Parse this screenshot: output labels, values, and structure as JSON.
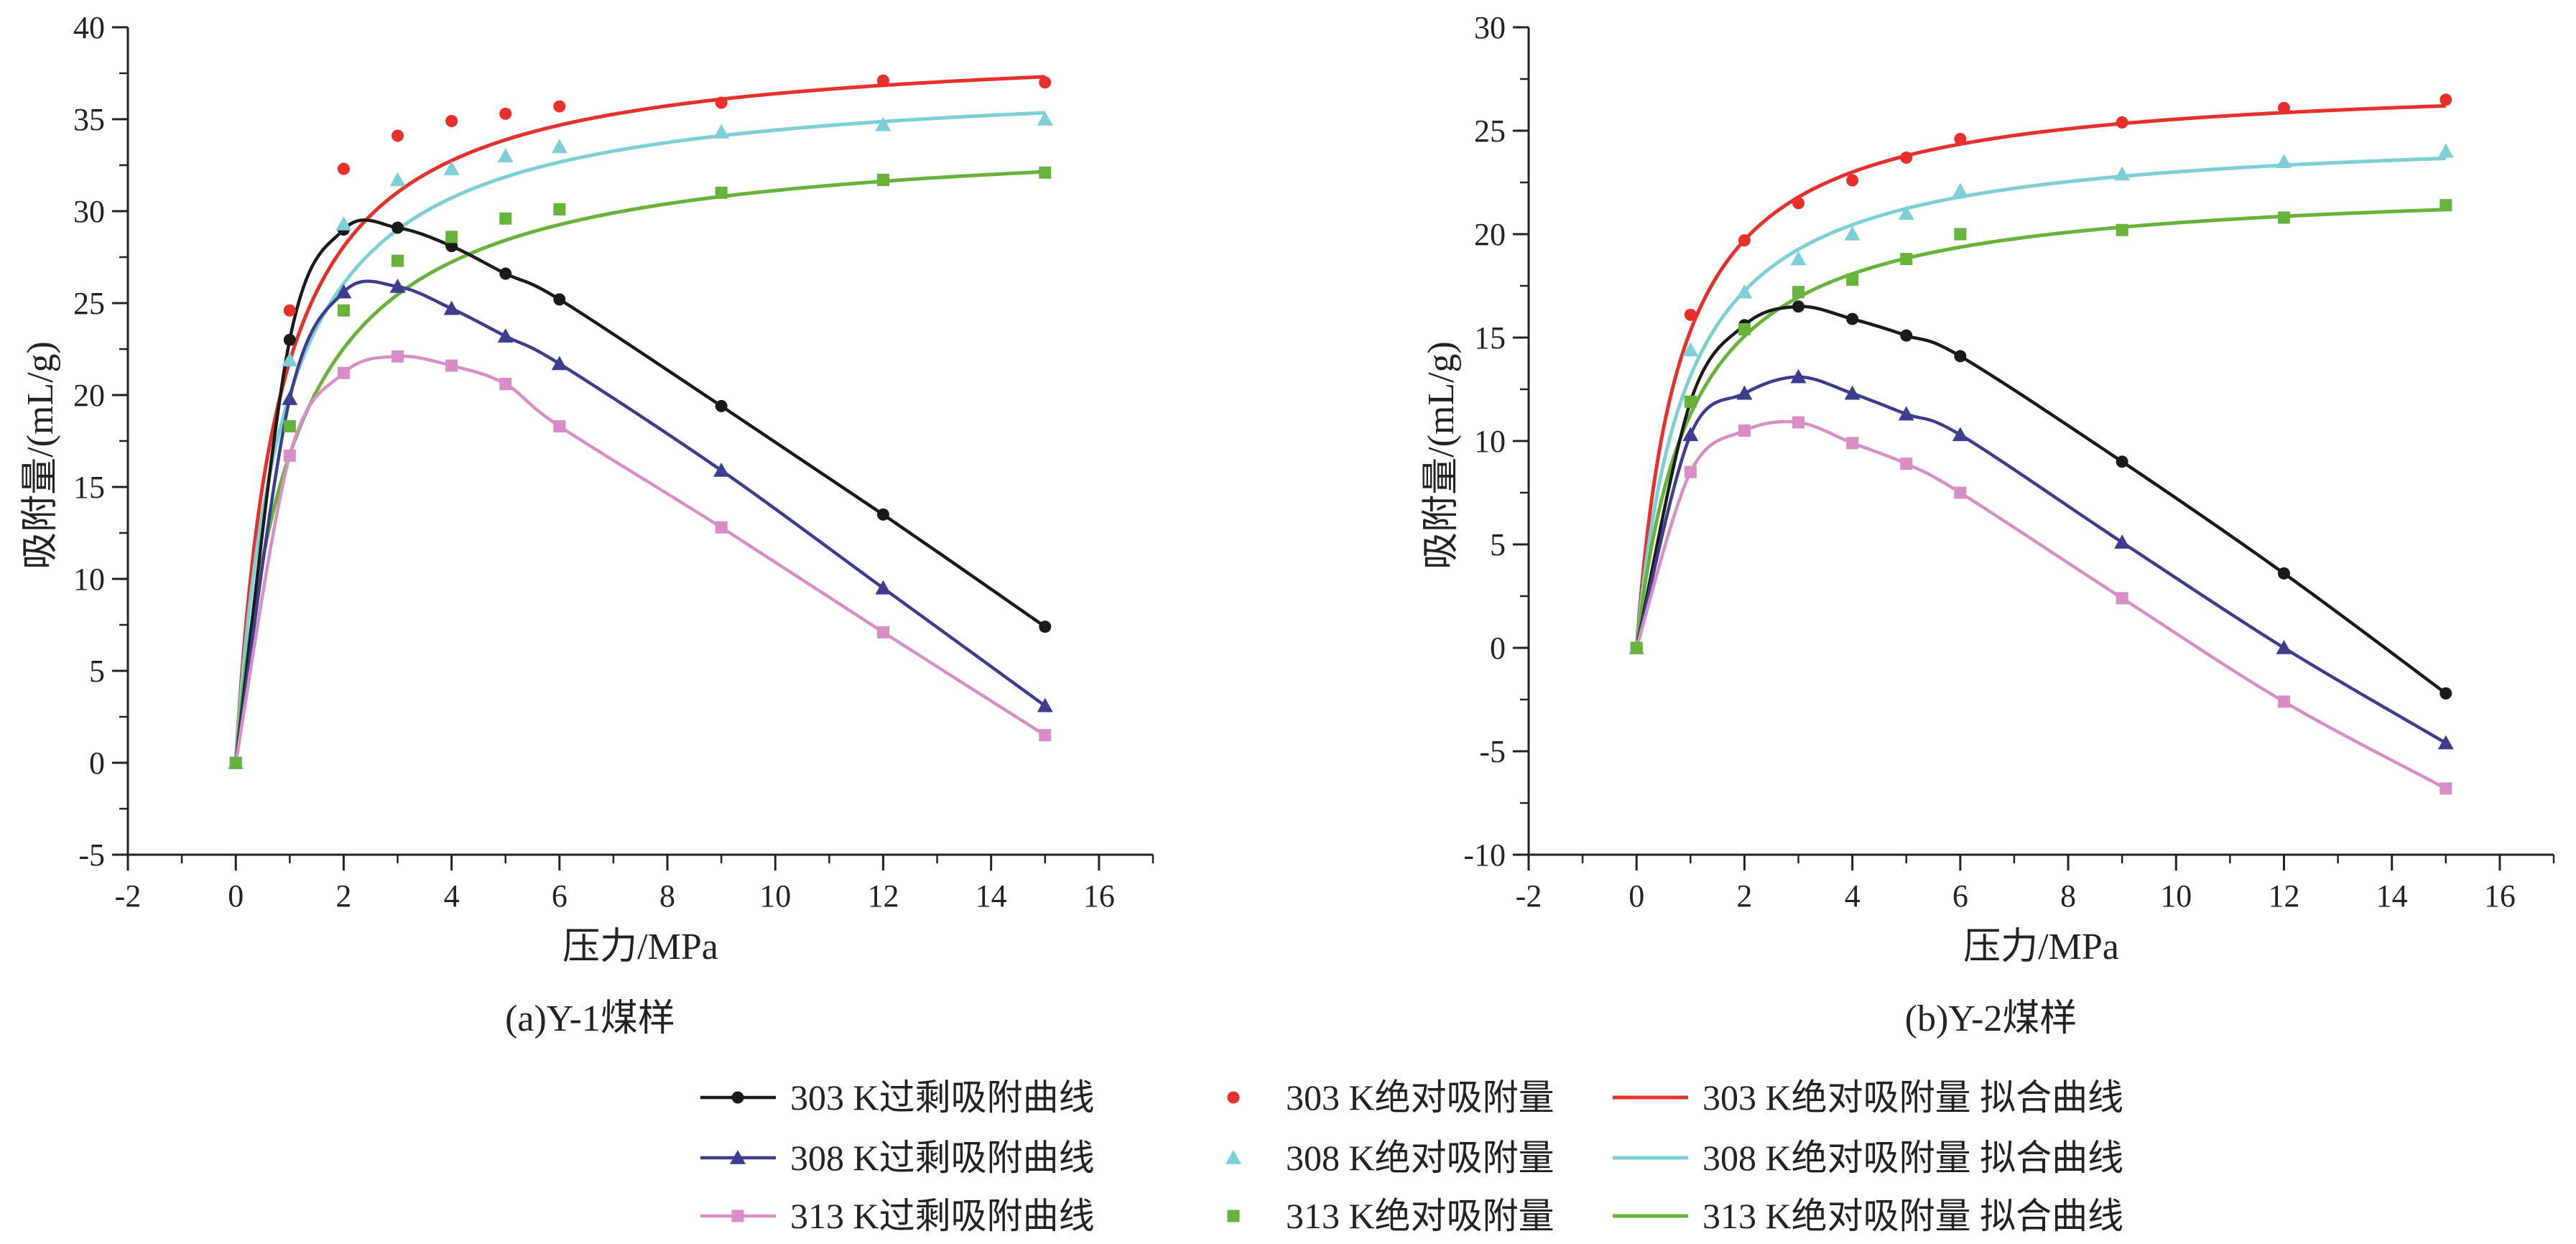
{
  "colors": {
    "black": "#1a1a1a",
    "navy": "#3d3d8f",
    "pink": "#d98cc6",
    "red": "#e8302a",
    "cyan": "#7ccfd6",
    "green": "#66b33a",
    "axis": "#222222"
  },
  "legend": {
    "items": [
      {
        "label": "303 K过剩吸附曲线",
        "color": "#1a1a1a",
        "kind": "line-marker",
        "marker": "circle"
      },
      {
        "label": "303 K绝对吸附量",
        "color": "#e8302a",
        "kind": "marker",
        "marker": "circle"
      },
      {
        "label": "303 K绝对吸附量 拟合曲线",
        "color": "#e8302a",
        "kind": "line"
      },
      {
        "label": "308 K过剩吸附曲线",
        "color": "#3d3d8f",
        "kind": "line-marker",
        "marker": "triangle"
      },
      {
        "label": "308 K绝对吸附量",
        "color": "#7ccfd6",
        "kind": "marker",
        "marker": "triangle"
      },
      {
        "label": "308 K绝对吸附量 拟合曲线",
        "color": "#7ccfd6",
        "kind": "line"
      },
      {
        "label": "313 K过剩吸附曲线",
        "color": "#d98cc6",
        "kind": "line-marker",
        "marker": "square"
      },
      {
        "label": "313 K绝对吸附量",
        "color": "#66b33a",
        "kind": "marker",
        "marker": "square"
      },
      {
        "label": "313 K绝对吸附量 拟合曲线",
        "color": "#66b33a",
        "kind": "line"
      }
    ]
  },
  "chart_data": [
    {
      "type": "line",
      "caption": "(a)Y-1煤样",
      "xlabel": "压力/MPa",
      "ylabel": "吸附量/(mL/g)",
      "xlim": [
        -2,
        17
      ],
      "ylim": [
        -5,
        40
      ],
      "xticks": [
        -2,
        0,
        2,
        4,
        6,
        8,
        10,
        12,
        14,
        16
      ],
      "yticks": [
        -5,
        0,
        5,
        10,
        15,
        20,
        25,
        30,
        35,
        40
      ],
      "x": [
        0,
        1,
        2,
        3,
        4,
        5,
        6,
        9,
        12,
        15
      ],
      "series": [
        {
          "name": "303 K过剩吸附曲线",
          "color": "#1a1a1a",
          "marker": "circle",
          "line": true,
          "values": [
            0,
            23.0,
            29.0,
            29.1,
            28.1,
            26.6,
            25.2,
            19.4,
            13.5,
            7.4
          ]
        },
        {
          "name": "308 K过剩吸附曲线",
          "color": "#3d3d8f",
          "marker": "triangle",
          "line": true,
          "values": [
            0,
            19.8,
            25.6,
            25.9,
            24.7,
            23.2,
            21.7,
            15.9,
            9.5,
            3.1
          ]
        },
        {
          "name": "313 K过剩吸附曲线",
          "color": "#d98cc6",
          "marker": "square",
          "line": true,
          "values": [
            0,
            16.7,
            21.2,
            22.1,
            21.6,
            20.6,
            18.3,
            12.8,
            7.1,
            1.5
          ]
        },
        {
          "name": "303 K绝对吸附量",
          "color": "#e8302a",
          "marker": "circle",
          "line": false,
          "values": [
            0,
            24.6,
            32.3,
            34.1,
            34.9,
            35.3,
            35.7,
            35.9,
            37.1,
            37.0
          ]
        },
        {
          "name": "308 K绝对吸附量",
          "color": "#7ccfd6",
          "marker": "triangle",
          "line": false,
          "values": [
            0,
            21.9,
            29.3,
            31.7,
            32.3,
            33.0,
            33.5,
            34.3,
            34.7,
            35.0
          ]
        },
        {
          "name": "313 K绝对吸附量",
          "color": "#66b33a",
          "marker": "square",
          "line": false,
          "values": [
            0,
            18.3,
            24.6,
            27.3,
            28.6,
            29.6,
            30.1,
            31.0,
            31.7,
            32.1
          ]
        }
      ],
      "fits": [
        {
          "name": "303 K绝对吸附量 拟合曲线",
          "color": "#e8302a",
          "model": "langmuir",
          "a": 39.3,
          "b": 1.25
        },
        {
          "name": "308 K绝对吸附量 拟合曲线",
          "color": "#7ccfd6",
          "model": "langmuir",
          "a": 37.4,
          "b": 1.15
        },
        {
          "name": "313 K绝对吸附量 拟合曲线",
          "color": "#66b33a",
          "model": "langmuir",
          "a": 34.4,
          "b": 0.95
        }
      ]
    },
    {
      "type": "line",
      "caption": "(b)Y-2煤样",
      "xlabel": "压力/MPa",
      "ylabel": "吸附量/(mL/g)",
      "xlim": [
        -2,
        17
      ],
      "ylim": [
        -10,
        30
      ],
      "xticks": [
        -2,
        0,
        2,
        4,
        6,
        8,
        10,
        12,
        14,
        16
      ],
      "yticks": [
        -10,
        -5,
        0,
        5,
        10,
        15,
        20,
        25,
        30
      ],
      "x": [
        0,
        1,
        2,
        3,
        4,
        5,
        6,
        9,
        12,
        15
      ],
      "series": [
        {
          "name": "303 K过剩吸附曲线",
          "color": "#1a1a1a",
          "marker": "circle",
          "line": true,
          "values": [
            0,
            11.9,
            15.6,
            16.5,
            15.9,
            15.1,
            14.1,
            9.0,
            3.6,
            -2.2
          ]
        },
        {
          "name": "308 K过剩吸附曲线",
          "color": "#3d3d8f",
          "marker": "triangle",
          "line": true,
          "values": [
            0,
            10.3,
            12.3,
            13.1,
            12.3,
            11.3,
            10.3,
            5.1,
            0.0,
            -4.6
          ]
        },
        {
          "name": "313 K过剩吸附曲线",
          "color": "#d98cc6",
          "marker": "square",
          "line": true,
          "values": [
            0,
            8.5,
            10.5,
            10.9,
            9.9,
            8.9,
            7.5,
            2.4,
            -2.6,
            -6.8
          ]
        },
        {
          "name": "303 K绝对吸附量",
          "color": "#e8302a",
          "marker": "circle",
          "line": false,
          "values": [
            0,
            16.1,
            19.7,
            21.5,
            22.6,
            23.7,
            24.6,
            25.4,
            26.1,
            26.5
          ]
        },
        {
          "name": "308 K绝对吸附量",
          "color": "#7ccfd6",
          "marker": "triangle",
          "line": false,
          "values": [
            0,
            14.4,
            17.2,
            18.8,
            20.0,
            21.0,
            22.1,
            22.9,
            23.5,
            24.0
          ]
        },
        {
          "name": "313 K绝对吸附量",
          "color": "#66b33a",
          "marker": "square",
          "line": false,
          "values": [
            0,
            11.9,
            15.4,
            17.2,
            17.8,
            18.8,
            20.0,
            20.2,
            20.8,
            21.4
          ]
        }
      ],
      "fits": [
        {
          "name": "303 K绝对吸附量 拟合曲线",
          "color": "#e8302a",
          "model": "langmuir",
          "a": 27.6,
          "b": 1.25
        },
        {
          "name": "308 K绝对吸附量 拟合曲线",
          "color": "#7ccfd6",
          "model": "langmuir",
          "a": 25.1,
          "b": 1.1
        },
        {
          "name": "313 K绝对吸附量 拟合曲线",
          "color": "#66b33a",
          "model": "langmuir",
          "a": 22.6,
          "b": 1.0
        }
      ]
    }
  ]
}
